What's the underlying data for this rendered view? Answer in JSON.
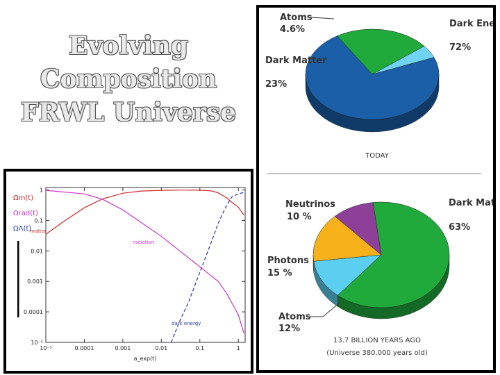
{
  "title_lines": [
    "Evolving",
    "Composition",
    "FRWL Universe"
  ],
  "chart_data": [
    {
      "type": "line",
      "xscale": "log",
      "yscale": "log",
      "xlim": [
        1e-05,
        1.5
      ],
      "ylim": [
        1e-05,
        1.2
      ],
      "xlabel": "a_exp(t)",
      "ylabel": "",
      "x_ticks": [
        "10⁻⁵",
        "0.0001",
        "0.001",
        "0.01",
        "0.1",
        "1"
      ],
      "y_ticks": [
        "1",
        "0.1",
        "0.01",
        "0.001",
        "0.0001",
        "10⁻⁵"
      ],
      "legend": [
        "Ωm(t)",
        "Ωrad(t)",
        "ΩΛ(t)"
      ],
      "annotations": {
        "matter": "matter",
        "radiation": "radiation",
        "dark_energy": "dark energy"
      },
      "colors": {
        "matter": "#cc2a2a",
        "radiation": "#cc33cc",
        "dark_energy": "#2233aa"
      },
      "series": [
        {
          "name": "Ωm(t)",
          "x": [
            1e-05,
            3e-05,
            0.0001,
            0.0003,
            0.001,
            0.003,
            0.01,
            0.03,
            0.1,
            0.2,
            0.3,
            0.5,
            0.7,
            1.0,
            1.4
          ],
          "y": [
            0.035,
            0.095,
            0.26,
            0.51,
            0.78,
            0.92,
            0.97,
            0.99,
            0.98,
            0.93,
            0.8,
            0.55,
            0.38,
            0.27,
            0.15
          ]
        },
        {
          "name": "Ωrad(t)",
          "x": [
            1e-05,
            0.0001,
            0.0003,
            0.001,
            0.003,
            0.01,
            0.03,
            0.1,
            0.3,
            0.5,
            1.0,
            1.4
          ],
          "y": [
            0.97,
            0.74,
            0.49,
            0.22,
            0.085,
            0.03,
            0.01,
            0.003,
            0.001,
            0.0004,
            8e-05,
            2e-05
          ]
        },
        {
          "name": "ΩΛ(t)",
          "x": [
            0.018,
            0.03,
            0.05,
            0.1,
            0.2,
            0.3,
            0.5,
            0.7,
            1.0,
            1.4
          ],
          "y": [
            1e-05,
            5e-05,
            0.0002,
            0.002,
            0.02,
            0.08,
            0.32,
            0.62,
            0.73,
            0.84
          ]
        }
      ]
    },
    {
      "type": "pie",
      "caption": "TODAY",
      "slices": [
        {
          "label": "Dark Energy",
          "percent_label": "72%",
          "value": 72,
          "color": "#1a5fa8"
        },
        {
          "label": "Dark Matter",
          "percent_label": "23%",
          "value": 23,
          "color": "#1faa3b"
        },
        {
          "label": "Atoms",
          "percent_label": "4.6%",
          "value": 4.6,
          "color": "#6fd3f2"
        }
      ]
    },
    {
      "type": "pie",
      "caption": [
        "13.7 BILLION YEARS AGO",
        "(Universe 380,000 years old)"
      ],
      "slices": [
        {
          "label": "Dark Matter",
          "percent_label": "63%",
          "value": 63,
          "color": "#1faa3b"
        },
        {
          "label": "Atoms",
          "percent_label": "12%",
          "value": 12,
          "color": "#5ccff0"
        },
        {
          "label": "Photons",
          "percent_label": "15 %",
          "value": 15,
          "color": "#f7b21b"
        },
        {
          "label": "Neutrinos",
          "percent_label": "10 %",
          "value": 10,
          "color": "#8e3f98"
        }
      ]
    }
  ]
}
